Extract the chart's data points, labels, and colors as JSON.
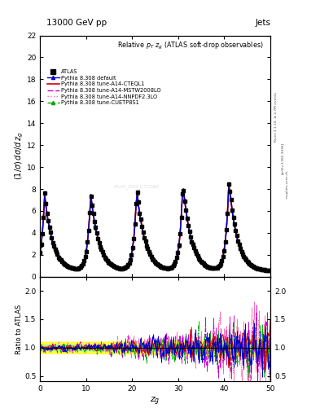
{
  "title_top": "13000 GeV pp",
  "title_right": "Jets",
  "plot_title": "Relative $p_T$ $z_g$ (ATLAS soft-drop observables)",
  "ylabel_main": "(1/σ) dσ/d z_{g}",
  "ylabel_ratio": "Ratio to ATLAS",
  "xlabel": "$z_g$",
  "xmin": 0,
  "xmax": 50,
  "ymin_main": 0,
  "ymax_main": 22,
  "ymin_ratio": 0.4,
  "ymax_ratio": 2.25,
  "rivet_text": "Rivet 3.1.10, ≥ 2.7M events",
  "arxiv_text": "[arXiv:1306.3436]",
  "mcplots_text": "mcplots.cern.ch",
  "watermark": "ATLAS_2019_I1772062",
  "legend_entries": [
    "ATLAS",
    "Pythia 8.308 default",
    "Pythia 8.308 tune-A14-CTEQL1",
    "Pythia 8.308 tune-A14-MSTW2008LO",
    "Pythia 8.308 tune-A14-NNPDF2.3LO",
    "Pythia 8.308 tune-CUETP8S1"
  ],
  "colors": {
    "atlas": "#000000",
    "default": "#0000cc",
    "cteql1": "#cc0000",
    "mstw": "#cc00cc",
    "nnpdf": "#ff69b4",
    "cuetp": "#00aa00"
  },
  "yticks_main": [
    0,
    2,
    4,
    6,
    8,
    10,
    12,
    14,
    16,
    18,
    20,
    22
  ],
  "ratio_yticks": [
    0.5,
    1.0,
    1.5,
    2.0
  ],
  "peak_positions": [
    1,
    11,
    21,
    31,
    41
  ],
  "peak_heights": [
    7.5,
    7.6,
    8.0,
    8.5,
    8.7
  ],
  "trough_val": 0.5,
  "n_pts": 200
}
